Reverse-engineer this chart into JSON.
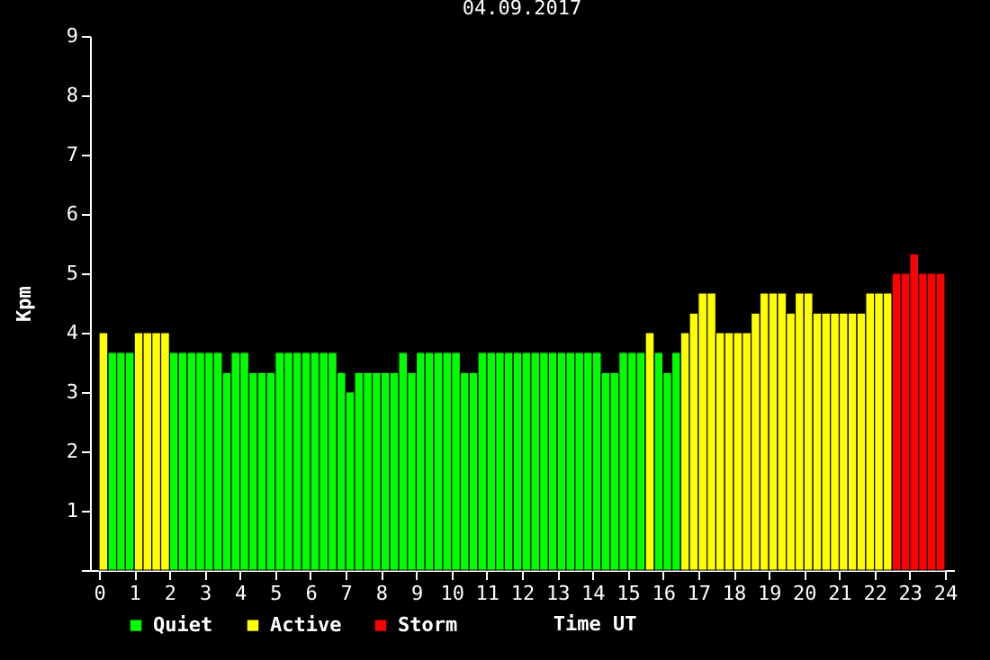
{
  "chart_data": {
    "type": "bar",
    "title": "04.09.2017",
    "xlabel": "Time UT",
    "ylabel": "Kpm",
    "series": [
      {
        "name": "Quiet",
        "color": "#00ff00",
        "x": [
          0.375,
          0.625,
          0.875,
          2.125,
          2.375,
          2.625,
          2.875,
          3.125,
          3.375,
          3.625,
          3.875,
          4.125,
          4.375,
          4.625,
          4.875,
          5.125,
          5.375,
          5.625,
          5.875,
          6.125,
          6.375,
          6.625,
          6.875,
          7.125,
          7.375,
          7.625,
          7.875,
          8.125,
          8.375,
          8.625,
          8.875,
          9.125,
          9.375,
          9.625,
          9.875,
          10.125,
          10.375,
          10.625,
          10.875,
          11.125,
          11.375,
          11.625,
          11.875,
          12.125,
          12.375,
          12.625,
          12.875,
          13.125,
          13.375,
          13.625,
          13.875,
          14.125,
          14.375,
          14.625,
          14.875,
          15.125,
          15.375,
          15.875,
          16.125,
          16.375
        ],
        "values": [
          3.67,
          3.67,
          3.67,
          3.67,
          3.67,
          3.67,
          3.67,
          3.67,
          3.67,
          3.33,
          3.67,
          3.67,
          3.33,
          3.33,
          3.33,
          3.67,
          3.67,
          3.67,
          3.67,
          3.67,
          3.67,
          3.67,
          3.33,
          3,
          3.33,
          3.33,
          3.33,
          3.33,
          3.33,
          3.67,
          3.33,
          3.67,
          3.67,
          3.67,
          3.67,
          3.67,
          3.33,
          3.33,
          3.67,
          3.67,
          3.67,
          3.67,
          3.67,
          3.67,
          3.67,
          3.67,
          3.67,
          3.67,
          3.67,
          3.67,
          3.67,
          3.67,
          3.33,
          3.33,
          3.67,
          3.67,
          3.67,
          3.67,
          3.33,
          3.67
        ]
      },
      {
        "name": "Active",
        "color": "#ffff00",
        "x": [
          0.125,
          1.125,
          1.375,
          1.625,
          1.875,
          15.625,
          16.625,
          16.875,
          17.125,
          17.375,
          17.625,
          17.875,
          18.125,
          18.375,
          18.625,
          18.875,
          19.125,
          19.375,
          19.625,
          19.875,
          20.125,
          20.375,
          20.625,
          20.875,
          21.125,
          21.375,
          21.625,
          21.875,
          22.125,
          22.375
        ],
        "values": [
          4,
          4,
          4,
          4,
          4,
          4,
          4,
          4.33,
          4.67,
          4.67,
          4,
          4,
          4,
          4,
          4.33,
          4.67,
          4.67,
          4.67,
          4.33,
          4.67,
          4.67,
          4.33,
          4.33,
          4.33,
          4.33,
          4.33,
          4.33,
          4.67,
          4.67,
          4.67
        ]
      },
      {
        "name": "Storm",
        "color": "#ff0000",
        "x": [
          22.625,
          22.875,
          23.125,
          23.375,
          23.625,
          23.875
        ],
        "values": [
          5,
          5,
          5.33,
          5,
          5,
          5
        ]
      }
    ],
    "xlim": [
      0,
      24
    ],
    "xticks": [
      0,
      1,
      2,
      3,
      4,
      5,
      6,
      7,
      8,
      9,
      10,
      11,
      12,
      13,
      14,
      15,
      16,
      17,
      18,
      19,
      20,
      21,
      22,
      23,
      24
    ],
    "ylim": [
      0,
      9
    ],
    "yticks": [
      {
        "value": 0,
        "label": null
      },
      1,
      2,
      3,
      4,
      5,
      6,
      7,
      8,
      9
    ],
    "grid": false,
    "legend": "bottom left"
  }
}
